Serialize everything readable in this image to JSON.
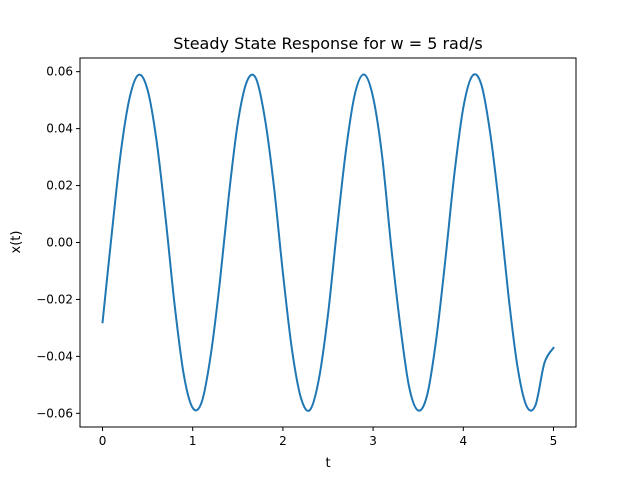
{
  "chart_data": {
    "type": "line",
    "title": "Steady State Response for w = 5 rad/s",
    "xlabel": "t",
    "ylabel": "x(t)",
    "xlim": [
      -0.25,
      5.25
    ],
    "ylim": [
      -0.0648,
      0.0648
    ],
    "xticks": [
      0,
      1,
      2,
      3,
      4,
      5
    ],
    "xtick_labels": [
      "0",
      "1",
      "2",
      "3",
      "4",
      "5"
    ],
    "yticks": [
      -0.06,
      -0.04,
      -0.02,
      0.0,
      0.02,
      0.04,
      0.06
    ],
    "ytick_labels": [
      "−0.06",
      "−0.04",
      "−0.02",
      "0.00",
      "0.02",
      "0.04",
      "0.06"
    ],
    "grid": false,
    "series": [
      {
        "color": "#1f77b4",
        "x": [
          0.0,
          0.1,
          0.2,
          0.3,
          0.4,
          0.5,
          0.6,
          0.7,
          0.8,
          0.9,
          1.0,
          1.1,
          1.2,
          1.3,
          1.4,
          1.5,
          1.6,
          1.7,
          1.8,
          1.9,
          2.0,
          2.1,
          2.2,
          2.3,
          2.4,
          2.5,
          2.6,
          2.7,
          2.8,
          2.9,
          3.0,
          3.1,
          3.2,
          3.3,
          3.4,
          3.5,
          3.6,
          3.7,
          3.8,
          3.9,
          4.0,
          4.1,
          4.2,
          4.3,
          4.4,
          4.5,
          4.6,
          4.7,
          4.8,
          4.9,
          5.0
        ],
        "y": [
          -0.028,
          0.0024,
          0.0311,
          0.0508,
          0.0589,
          0.0535,
          0.0355,
          0.0083,
          -0.0221,
          -0.0463,
          -0.0581,
          -0.056,
          -0.0395,
          -0.0141,
          0.0164,
          0.042,
          0.0565,
          0.0577,
          0.0436,
          0.0198,
          -0.0107,
          -0.0375,
          -0.0546,
          -0.0588,
          -0.0478,
          -0.0253,
          0.0047,
          0.0326,
          0.0524,
          0.059,
          0.051,
          0.0304,
          -0.0012,
          -0.0289,
          -0.0508,
          -0.059,
          -0.0535,
          -0.034,
          -0.0064,
          0.0237,
          0.0473,
          0.0585,
          0.0555,
          0.0381,
          0.0121,
          -0.0183,
          -0.0434,
          -0.0573,
          -0.0572,
          -0.0423,
          -0.037
        ]
      }
    ]
  }
}
